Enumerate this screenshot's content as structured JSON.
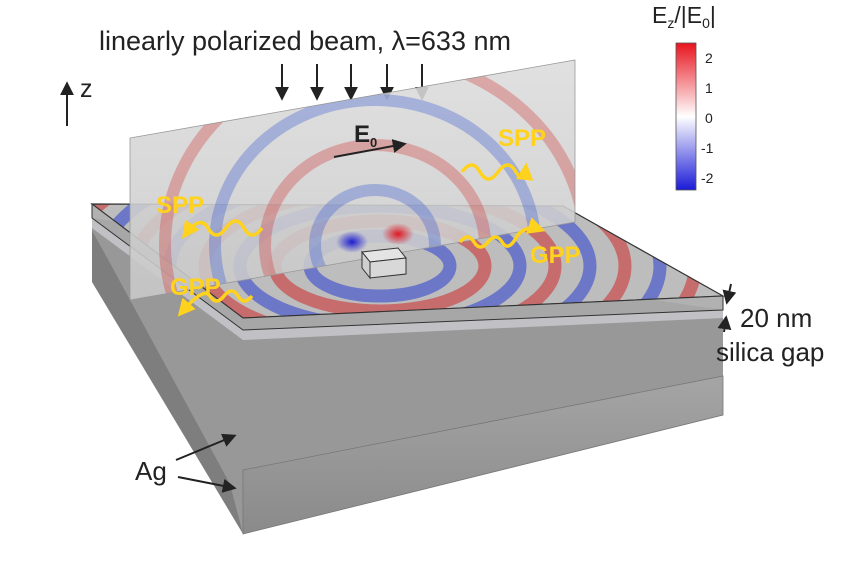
{
  "title": "linearly polarized beam, λ=633 nm",
  "axis_label": "z",
  "field_label": "E",
  "field_subscript": "0",
  "colorbar": {
    "label_parts": [
      "E",
      "z",
      "/|E",
      "0",
      "|"
    ],
    "ticks": [
      "2",
      "1",
      "0",
      "-1",
      "-2"
    ],
    "colors": {
      "max": "#e8141e",
      "mid": "#ffffff",
      "min": "#1a1ad8"
    }
  },
  "waves": {
    "spp_left": "SPP",
    "spp_right": "SPP",
    "gpp_left": "GPP",
    "gpp_right": "GPP"
  },
  "thickness_label": "20 nm",
  "gap_label": "silica gap",
  "material_label": "Ag",
  "colors": {
    "wave_label": "#ffd21e",
    "metal": "#8f8f8f",
    "text": "#222222"
  }
}
